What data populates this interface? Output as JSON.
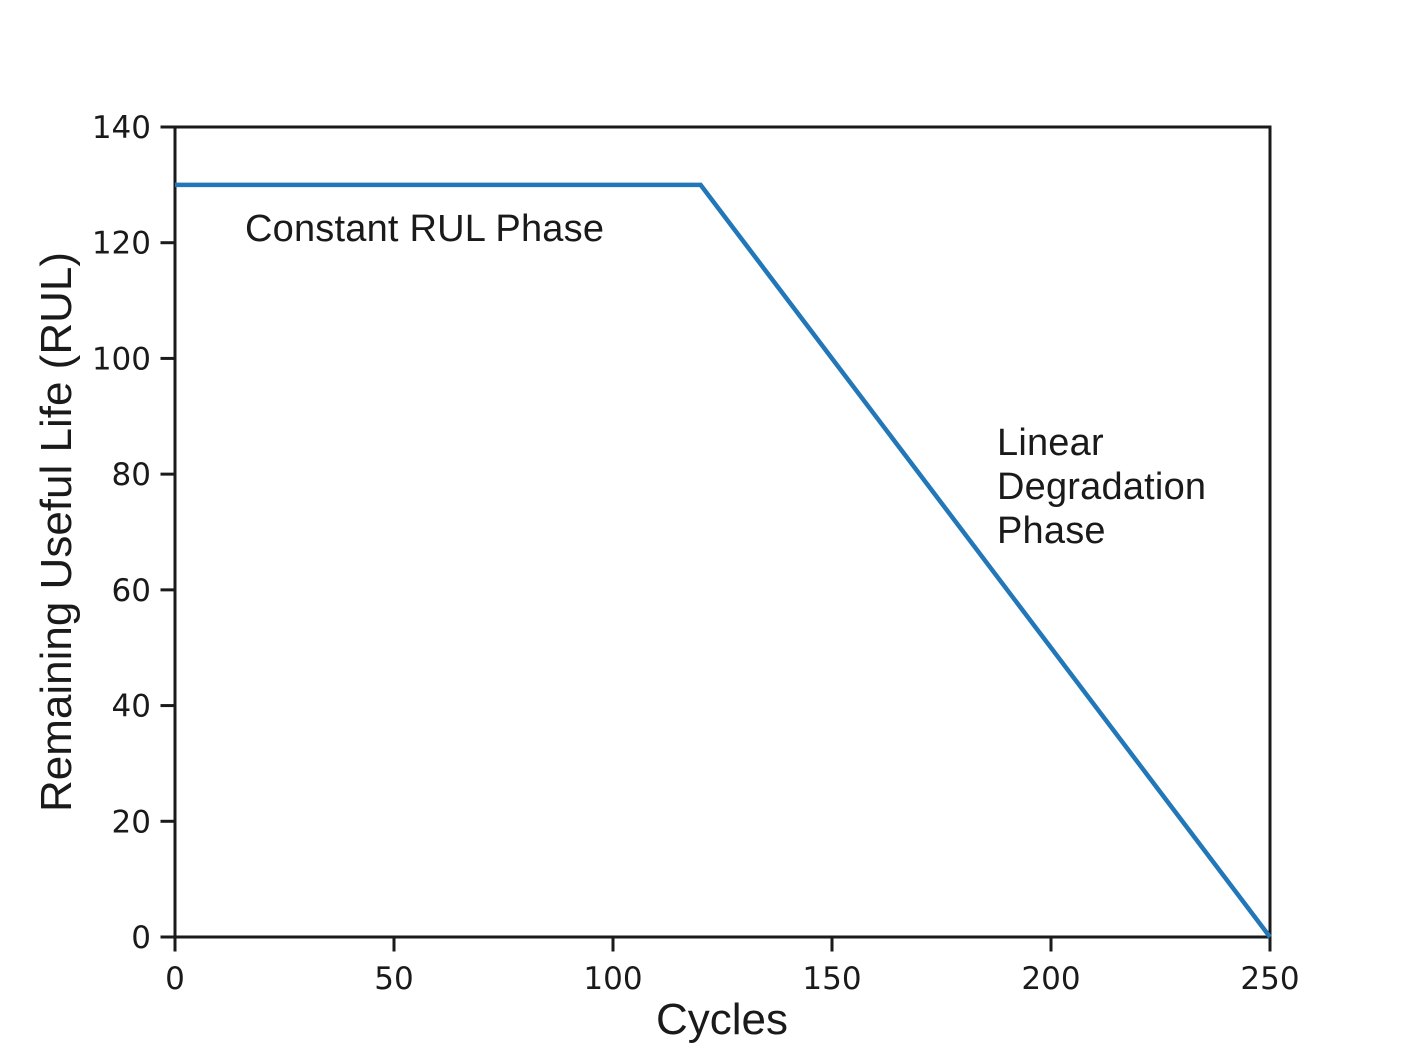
{
  "chart_data": {
    "type": "line",
    "title": "",
    "xlabel": "Cycles",
    "ylabel": "Remaining Useful Life (RUL)",
    "xlim": [
      0,
      250
    ],
    "ylim": [
      0,
      140
    ],
    "x_ticks": [
      0,
      50,
      100,
      150,
      200,
      250
    ],
    "y_ticks": [
      0,
      20,
      40,
      60,
      80,
      100,
      120,
      140
    ],
    "grid": false,
    "legend": false,
    "series": [
      {
        "name": "RUL",
        "color": "#2277b8",
        "linewidth": 4.5,
        "x": [
          0,
          120,
          250
        ],
        "y": [
          130,
          130,
          0
        ]
      }
    ],
    "annotations": [
      {
        "id": "constant-rul-phase",
        "lines": [
          "Constant RUL Phase"
        ],
        "x": 16,
        "y": 122
      },
      {
        "id": "linear-degradation-phase",
        "lines": [
          "Linear",
          "Degradation",
          "Phase"
        ],
        "x": 188,
        "y": 88
      }
    ],
    "axis_color": "#1a1a1a",
    "text_color": "#1a1a1a",
    "background_color": "#ffffff"
  }
}
